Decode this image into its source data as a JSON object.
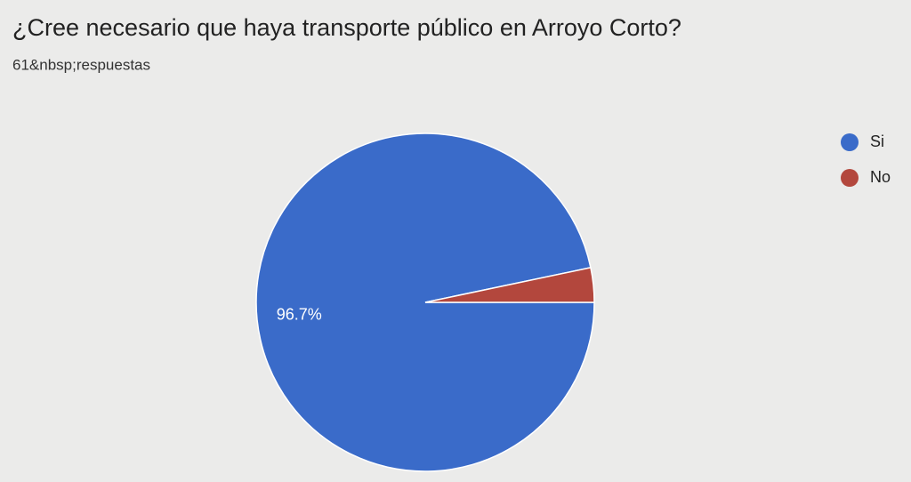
{
  "chart_data": {
    "type": "pie",
    "title": "¿Cree necesario que haya transporte público en Arroyo Corto?",
    "subtitle": "61&nbsp;respuestas",
    "categories": [
      "Si",
      "No"
    ],
    "values": [
      96.7,
      3.3
    ],
    "value_labels": [
      "96.7%",
      null
    ],
    "colors": [
      "#3a6bc9",
      "#b3473d"
    ],
    "legend": "top-right"
  }
}
